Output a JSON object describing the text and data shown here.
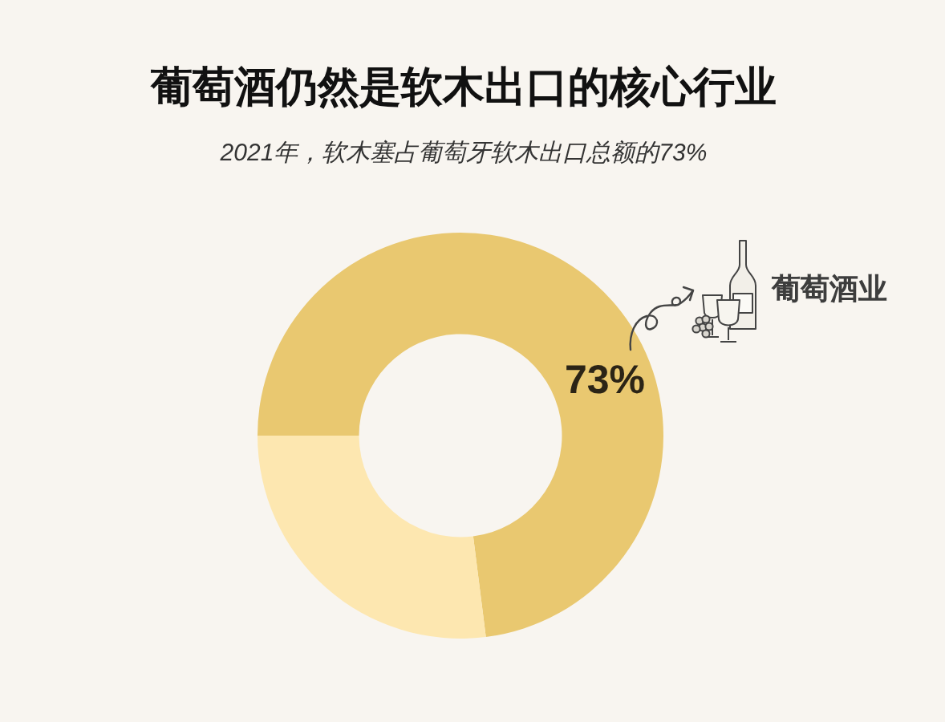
{
  "chart_data": {
    "type": "donut",
    "title": "葡萄酒仍然是软木出口的核心行业",
    "subtitle": "2021年，软木塞占葡萄牙软木出口总额的73%",
    "categories": [
      "葡萄酒业",
      null
    ],
    "values": [
      73,
      27
    ],
    "colors": [
      "#e9c870",
      "#fde7b0"
    ],
    "value_labels": [
      "73%",
      null
    ]
  }
}
